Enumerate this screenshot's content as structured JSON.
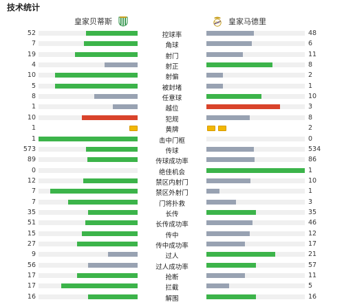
{
  "header": {
    "title": "技术统计"
  },
  "teams": {
    "home": {
      "name": "皇家贝蒂斯",
      "crest_icon": "betis-crest-icon"
    },
    "away": {
      "name": "皇家马德里",
      "crest_icon": "real-madrid-crest-icon"
    }
  },
  "colors": {
    "green": "#3cb44a",
    "grey": "#98a2b2",
    "red": "#d9432b",
    "track": "#f0f0f0",
    "yellow_card": "#f2b705"
  },
  "stats": [
    {
      "label": "控球率",
      "home": "52",
      "away": "48",
      "home_frac": 0.52,
      "away_frac": 0.48,
      "lead": "home"
    },
    {
      "label": "角球",
      "home": "7",
      "away": "6",
      "home_frac": 0.54,
      "away_frac": 0.46,
      "lead": "home"
    },
    {
      "label": "射门",
      "home": "19",
      "away": "11",
      "home_frac": 0.63,
      "away_frac": 0.37,
      "lead": "home"
    },
    {
      "label": "射正",
      "home": "4",
      "away": "8",
      "home_frac": 0.33,
      "away_frac": 0.67,
      "lead": "away"
    },
    {
      "label": "射偏",
      "home": "10",
      "away": "2",
      "home_frac": 0.83,
      "away_frac": 0.17,
      "lead": "home"
    },
    {
      "label": "被封堵",
      "home": "5",
      "away": "1",
      "home_frac": 0.83,
      "away_frac": 0.17,
      "lead": "home"
    },
    {
      "label": "任意球",
      "home": "8",
      "away": "10",
      "home_frac": 0.44,
      "away_frac": 0.56,
      "lead": "away"
    },
    {
      "label": "越位",
      "home": "1",
      "away": "3",
      "home_frac": 0.25,
      "away_frac": 0.75,
      "lead": "away",
      "negative": true
    },
    {
      "label": "犯规",
      "home": "10",
      "away": "8",
      "home_frac": 0.56,
      "away_frac": 0.44,
      "lead": "home",
      "negative": true
    },
    {
      "label": "黄牌",
      "home": "1",
      "away": "2",
      "home_cards": 1,
      "away_cards": 2,
      "type": "cards"
    },
    {
      "label": "击中门框",
      "home": "1",
      "away": "0",
      "home_frac": 1.0,
      "away_frac": 0.0,
      "lead": "home"
    },
    {
      "label": "传球",
      "home": "573",
      "away": "534",
      "home_frac": 0.52,
      "away_frac": 0.48,
      "lead": "home"
    },
    {
      "label": "传球成功率",
      "home": "89",
      "away": "86",
      "home_frac": 0.51,
      "away_frac": 0.49,
      "lead": "home"
    },
    {
      "label": "绝佳机会",
      "home": "0",
      "away": "1",
      "home_frac": 0.0,
      "away_frac": 1.0,
      "lead": "away"
    },
    {
      "label": "禁区内射门",
      "home": "12",
      "away": "10",
      "home_frac": 0.55,
      "away_frac": 0.45,
      "lead": "home"
    },
    {
      "label": "禁区外射门",
      "home": "7",
      "away": "1",
      "home_frac": 0.88,
      "away_frac": 0.13,
      "lead": "home"
    },
    {
      "label": "门将扑救",
      "home": "7",
      "away": "3",
      "home_frac": 0.7,
      "away_frac": 0.3,
      "lead": "home"
    },
    {
      "label": "长传",
      "home": "35",
      "away": "35",
      "home_frac": 0.5,
      "away_frac": 0.5,
      "lead": "both"
    },
    {
      "label": "长传成功率",
      "home": "51",
      "away": "46",
      "home_frac": 0.53,
      "away_frac": 0.47,
      "lead": "home"
    },
    {
      "label": "传中",
      "home": "15",
      "away": "12",
      "home_frac": 0.56,
      "away_frac": 0.44,
      "lead": "home"
    },
    {
      "label": "传中成功率",
      "home": "27",
      "away": "17",
      "home_frac": 0.61,
      "away_frac": 0.39,
      "lead": "home"
    },
    {
      "label": "过人",
      "home": "9",
      "away": "21",
      "home_frac": 0.3,
      "away_frac": 0.7,
      "lead": "away"
    },
    {
      "label": "过人成功率",
      "home": "56",
      "away": "57",
      "home_frac": 0.5,
      "away_frac": 0.5,
      "lead": "away"
    },
    {
      "label": "抢断",
      "home": "17",
      "away": "11",
      "home_frac": 0.61,
      "away_frac": 0.39,
      "lead": "home"
    },
    {
      "label": "拦截",
      "home": "17",
      "away": "5",
      "home_frac": 0.77,
      "away_frac": 0.23,
      "lead": "home"
    },
    {
      "label": "解围",
      "home": "16",
      "away": "16",
      "home_frac": 0.5,
      "away_frac": 0.5,
      "lead": "both"
    }
  ]
}
